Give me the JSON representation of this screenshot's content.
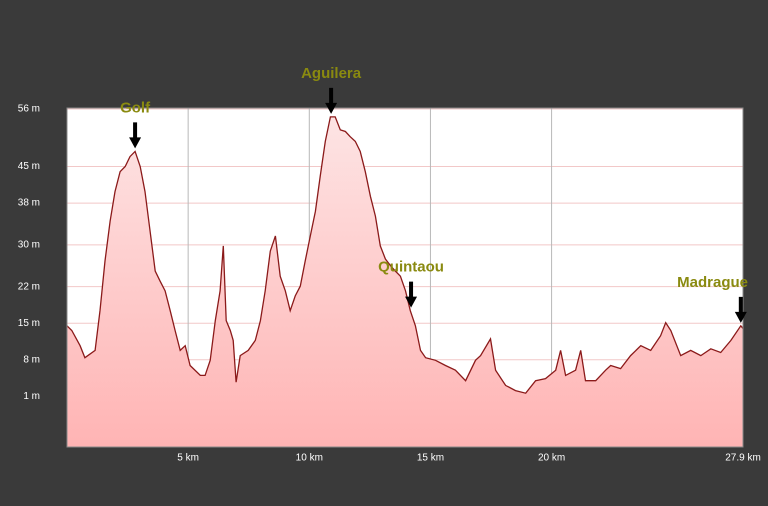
{
  "chart_data": {
    "type": "area",
    "x": [
      0,
      0.2,
      0.54,
      0.74,
      1.16,
      1.36,
      1.57,
      1.78,
      1.98,
      2.19,
      2.4,
      2.6,
      2.81,
      3.02,
      3.22,
      3.43,
      3.64,
      3.84,
      4.05,
      4.26,
      4.46,
      4.67,
      4.88,
      5.08,
      5.5,
      5.7,
      5.91,
      6.12,
      6.32,
      6.45,
      6.57,
      6.74,
      6.86,
      6.98,
      7.15,
      7.48,
      7.77,
      7.98,
      8.18,
      8.39,
      8.6,
      8.8,
      9.01,
      9.21,
      9.42,
      9.63,
      9.83,
      10.04,
      10.25,
      10.45,
      10.66,
      10.87,
      11.07,
      11.28,
      11.49,
      11.69,
      11.9,
      12.1,
      12.31,
      12.52,
      12.73,
      12.93,
      13.14,
      13.35,
      13.55,
      13.76,
      13.97,
      14.17,
      14.38,
      14.59,
      14.8,
      15.21,
      15.62,
      16.03,
      16.45,
      16.86,
      17.07,
      17.48,
      17.69,
      18.1,
      18.51,
      18.93,
      19.34,
      19.75,
      20.17,
      20.37,
      20.58,
      20.99,
      21.2,
      21.4,
      21.82,
      22.23,
      22.44,
      22.85,
      23.26,
      23.68,
      24.09,
      24.5,
      24.71,
      24.92,
      25.33,
      25.74,
      26.16,
      26.57,
      26.98,
      27.4,
      27.81,
      27.9
    ],
    "values": [
      14.5,
      13.6,
      10.7,
      8.4,
      9.8,
      17.4,
      26.9,
      34.5,
      40.2,
      44,
      45,
      46.9,
      47.9,
      45,
      40.2,
      32.6,
      25,
      23.1,
      21.2,
      17.4,
      13.6,
      9.8,
      10.7,
      6.9,
      5,
      5,
      7.9,
      15.5,
      21.2,
      29.8,
      15.5,
      13.6,
      11.7,
      3.7,
      8.8,
      9.8,
      11.7,
      15.5,
      21.2,
      28.8,
      31.7,
      24,
      21.2,
      17.4,
      20.2,
      22.1,
      26.9,
      31.7,
      36.4,
      43.1,
      49.8,
      54.5,
      54.5,
      52,
      51.7,
      50.7,
      49.8,
      47.9,
      44,
      39.3,
      35.5,
      29.8,
      27.3,
      26,
      25,
      24,
      21.2,
      17.4,
      14.5,
      9.8,
      8.4,
      7.9,
      6.9,
      6,
      4,
      7.9,
      8.8,
      12,
      6,
      3.1,
      2.1,
      1.6,
      4,
      4.4,
      6,
      9.8,
      5,
      6,
      9.8,
      4,
      4,
      6,
      6.9,
      6.3,
      8.8,
      10.7,
      9.8,
      12.6,
      15.1,
      13.6,
      8.8,
      9.8,
      8.8,
      10.1,
      9.4,
      11.7,
      14.5,
      14
    ],
    "color": "#8b1a1a",
    "xlim": [
      0,
      27.9
    ],
    "xticks": [
      {
        "value": 5,
        "label": "5 km"
      },
      {
        "value": 10,
        "label": "10 km"
      },
      {
        "value": 15,
        "label": "15 km"
      },
      {
        "value": 20,
        "label": "20 km"
      },
      {
        "value": 27.9,
        "label": "27.9 km"
      }
    ],
    "ylim": [
      -8.7,
      56.2
    ],
    "yticks": [
      {
        "value": 56,
        "label": "56 m"
      },
      {
        "value": 45,
        "label": "45 m"
      },
      {
        "value": 38,
        "label": "38 m"
      },
      {
        "value": 30,
        "label": "30 m"
      },
      {
        "value": 22,
        "label": "22 m"
      },
      {
        "value": 15,
        "label": "15 m"
      },
      {
        "value": 8,
        "label": "8 m"
      },
      {
        "value": 1,
        "label": "1 m"
      }
    ],
    "grid": true,
    "annotations": [
      {
        "text": "Golf",
        "x": 2.81,
        "y": 47.9
      },
      {
        "text": "Aguilera",
        "x": 10.9,
        "y": 54.5
      },
      {
        "text": "Quintaou",
        "x": 14.2,
        "y": 17.4
      },
      {
        "text": "Madrague",
        "x": 27.81,
        "y": 14.5
      }
    ]
  }
}
